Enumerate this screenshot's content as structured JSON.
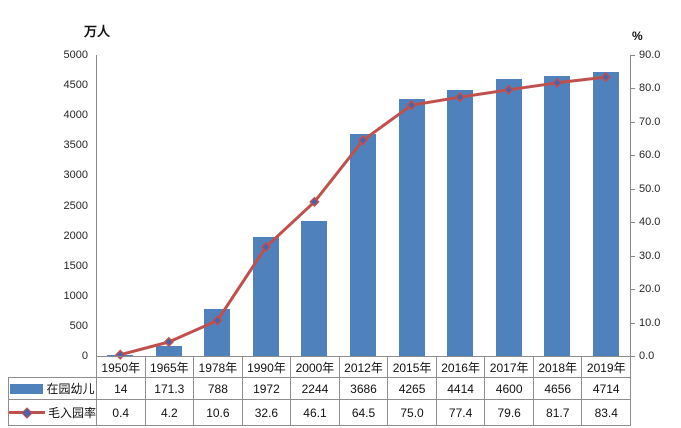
{
  "chart_data": {
    "type": "bar+line",
    "categories": [
      "1950年",
      "1965年",
      "1978年",
      "1990年",
      "2000年",
      "2012年",
      "2015年",
      "2016年",
      "2017年",
      "2018年",
      "2019年"
    ],
    "series": [
      {
        "name": "在园幼儿",
        "type": "bar",
        "axis": "left",
        "color": "#4F81BD",
        "values": [
          14,
          171.3,
          788,
          1972,
          2244,
          3686,
          4265,
          4414,
          4600,
          4656,
          4714
        ],
        "display_values": [
          "14",
          "171.3",
          "788",
          "1972",
          "2244",
          "3686",
          "4265",
          "4414",
          "4600",
          "4656",
          "4714"
        ]
      },
      {
        "name": "毛入园率",
        "type": "line",
        "axis": "right",
        "color": "#C0504D",
        "marker": "diamond",
        "marker_fill": "#4F62A8",
        "values": [
          0.4,
          4.2,
          10.6,
          32.6,
          46.1,
          64.5,
          75.0,
          77.4,
          79.6,
          81.7,
          83.4
        ],
        "display_values": [
          "0.4",
          "4.2",
          "10.6",
          "32.6",
          "46.1",
          "64.5",
          "75.0",
          "77.4",
          "79.6",
          "81.7",
          "83.4"
        ]
      }
    ],
    "left_axis": {
      "title": "万人",
      "min": 0,
      "max": 5000,
      "step": 500,
      "tick_labels": [
        "0",
        "500",
        "1000",
        "1500",
        "2000",
        "2500",
        "3000",
        "3500",
        "4000",
        "4500",
        "5000"
      ]
    },
    "right_axis": {
      "title": "%",
      "min": 0,
      "max": 90,
      "step": 10,
      "tick_labels": [
        "0.0",
        "10.0",
        "20.0",
        "30.0",
        "40.0",
        "50.0",
        "60.0",
        "70.0",
        "80.0",
        "90.0"
      ]
    },
    "grid": false,
    "legend_position": "data-table-left",
    "data_table": true
  }
}
